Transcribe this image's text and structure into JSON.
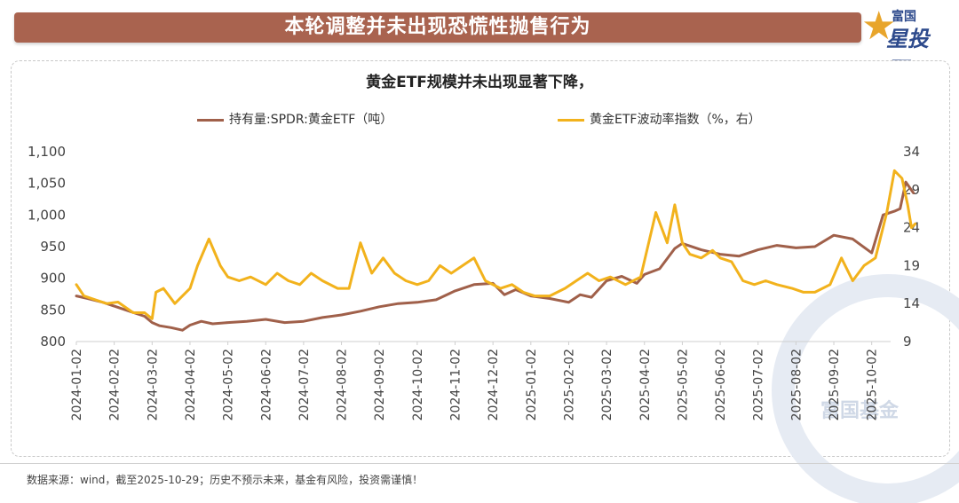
{
  "header": {
    "title": "本轮调整并未出现恐慌性抛售行为",
    "logo_small": "富国",
    "logo_big": "星投顾"
  },
  "watermark": "富国基金",
  "footer": {
    "source": "数据来源：wind，截至2025-10-29；历史不预示未来，基金有风险，投资需谨慎！"
  },
  "colors": {
    "holdings": "#a0604a",
    "volatility": "#f2b21c",
    "banner": "#a9634f"
  },
  "chart_data": {
    "type": "line",
    "title": "黄金ETF规模并未出现显著下降，",
    "x_tick_labels": [
      "2024-01-02",
      "2024-02-02",
      "2024-03-02",
      "2024-04-02",
      "2024-05-02",
      "2024-06-02",
      "2024-07-02",
      "2024-08-02",
      "2024-09-02",
      "2024-10-02",
      "2024-11-02",
      "2024-12-02",
      "2025-01-02",
      "2025-02-02",
      "2025-03-02",
      "2025-04-02",
      "2025-05-02",
      "2025-06-02",
      "2025-07-02",
      "2025-08-02",
      "2025-09-02",
      "2025-10-02"
    ],
    "y_left": {
      "min": 800,
      "max": 1100,
      "ticks": [
        "800",
        "850",
        "900",
        "950",
        "1,000",
        "1,050",
        "1,100"
      ]
    },
    "y_right": {
      "min": 9,
      "max": 34,
      "ticks": [
        "9",
        "14",
        "19",
        "24",
        "29",
        "34"
      ]
    },
    "series": [
      {
        "name": "持有量:SPDR:黄金ETF（吨）",
        "axis": "left",
        "x": [
          0,
          0.3,
          0.7,
          1.0,
          1.4,
          1.8,
          2.0,
          2.2,
          2.5,
          2.8,
          3.0,
          3.3,
          3.6,
          4.0,
          4.5,
          5.0,
          5.5,
          6.0,
          6.5,
          7.0,
          7.5,
          8.0,
          8.5,
          9.0,
          9.5,
          10.0,
          10.5,
          11.0,
          11.3,
          11.6,
          12.0,
          12.5,
          13.0,
          13.3,
          13.6,
          14.0,
          14.4,
          14.8,
          15.0,
          15.4,
          15.8,
          16.0,
          16.5,
          17.0,
          17.5,
          18.0,
          18.5,
          19.0,
          19.5,
          20.0,
          20.5,
          21.0,
          21.3,
          21.6,
          21.75,
          21.9,
          22.1
        ],
        "y": [
          872,
          868,
          862,
          856,
          848,
          840,
          830,
          825,
          822,
          818,
          826,
          832,
          828,
          830,
          832,
          835,
          830,
          832,
          838,
          842,
          848,
          855,
          860,
          862,
          866,
          880,
          890,
          892,
          874,
          882,
          872,
          868,
          862,
          874,
          870,
          896,
          903,
          892,
          906,
          915,
          947,
          955,
          945,
          938,
          935,
          945,
          952,
          948,
          950,
          968,
          962,
          940,
          1000,
          1006,
          1010,
          1052,
          1035
        ]
      },
      {
        "name": "黄金ETF波动率指数（%，右）",
        "axis": "right",
        "x": [
          0,
          0.2,
          0.5,
          0.8,
          1.1,
          1.5,
          1.8,
          2.0,
          2.1,
          2.3,
          2.6,
          3.0,
          3.2,
          3.5,
          3.8,
          4.0,
          4.3,
          4.6,
          5.0,
          5.3,
          5.6,
          5.9,
          6.2,
          6.5,
          6.9,
          7.2,
          7.5,
          7.8,
          8.1,
          8.4,
          8.7,
          9.0,
          9.3,
          9.6,
          9.9,
          10.2,
          10.5,
          10.8,
          11.2,
          11.5,
          11.8,
          12.1,
          12.5,
          12.9,
          13.2,
          13.5,
          13.8,
          14.1,
          14.5,
          14.9,
          15.3,
          15.6,
          15.8,
          16.0,
          16.2,
          16.5,
          16.8,
          17.0,
          17.3,
          17.6,
          17.9,
          18.2,
          18.5,
          18.9,
          19.2,
          19.5,
          19.9,
          20.2,
          20.5,
          20.8,
          21.1,
          21.4,
          21.6,
          21.8,
          21.95,
          22.05,
          22.15
        ],
        "y": [
          16.5,
          15,
          14.5,
          14,
          14.2,
          12.8,
          12.8,
          12,
          15.5,
          16,
          14,
          16,
          19,
          22.5,
          19,
          17.5,
          17,
          17.5,
          16.5,
          18,
          17,
          16.5,
          18,
          17,
          16,
          16,
          22,
          18,
          20,
          18,
          17,
          16.5,
          17,
          19,
          18,
          19,
          20,
          17,
          16,
          16.5,
          15.5,
          15,
          15,
          16,
          17,
          18,
          17,
          17.5,
          16.5,
          17.5,
          26,
          22,
          27,
          22,
          20.5,
          20,
          21,
          20,
          19.5,
          17,
          16.5,
          17,
          16.5,
          16,
          15.5,
          15.5,
          16.5,
          20,
          17,
          19,
          20,
          26,
          31.5,
          30.5,
          27,
          24,
          24.5
        ]
      }
    ]
  }
}
